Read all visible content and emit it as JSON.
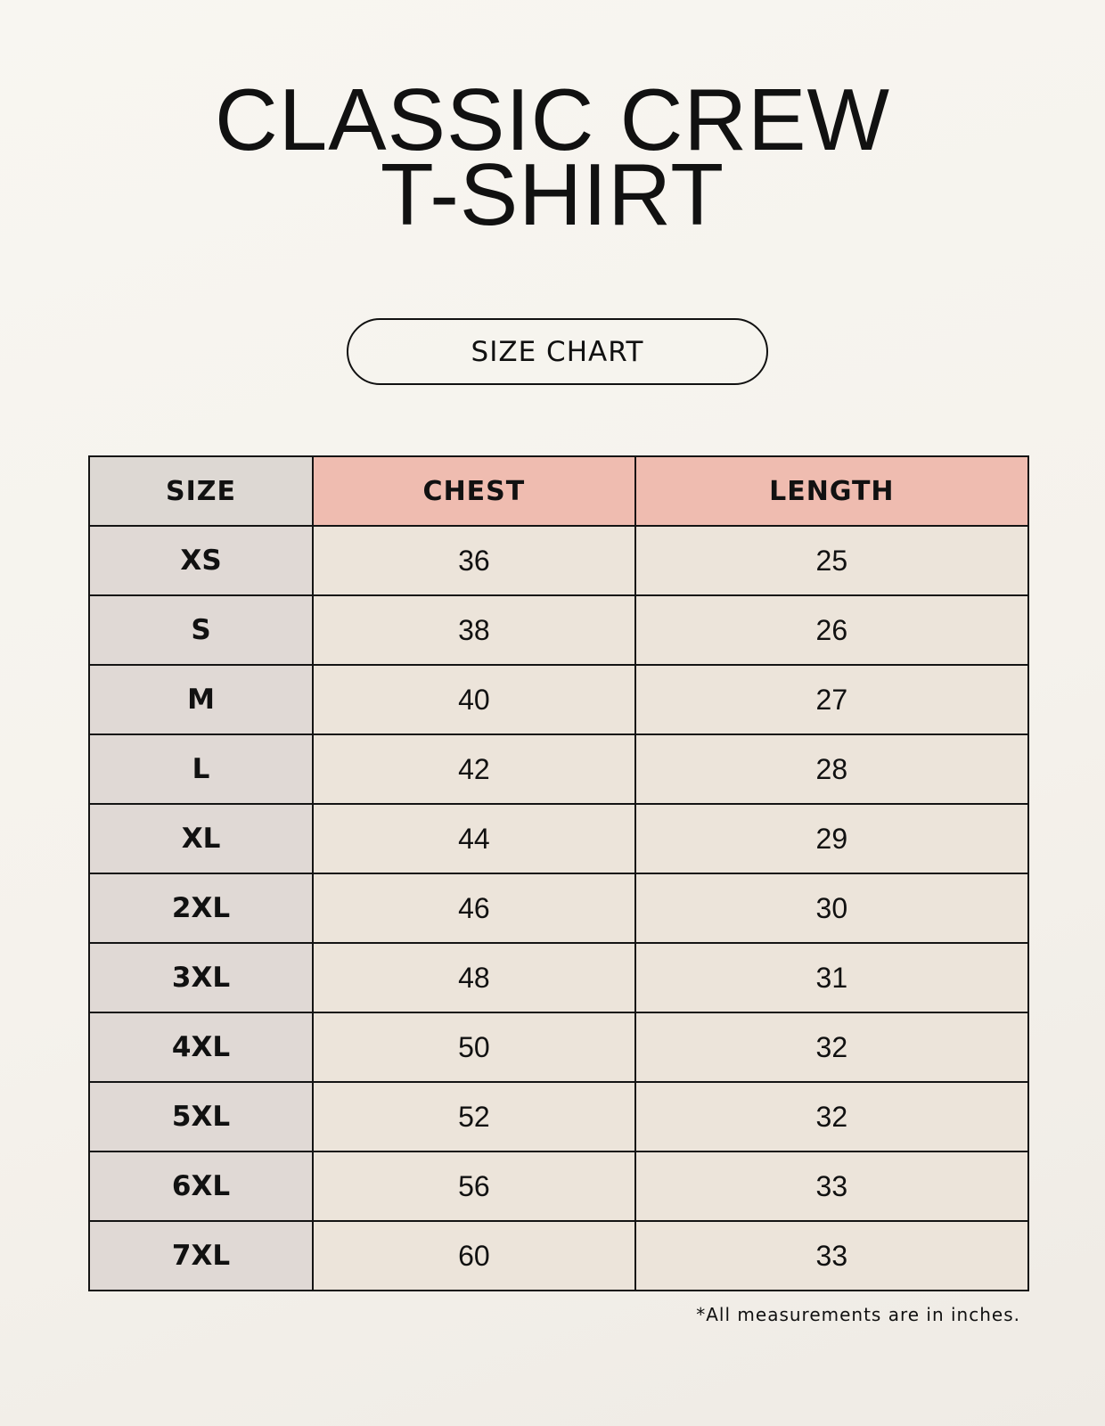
{
  "title": {
    "line1": "CLASSIC CREW",
    "line2": "T-SHIRT"
  },
  "badge": "SIZE CHART",
  "table": {
    "headers": [
      "SIZE",
      "CHEST",
      "LENGTH"
    ],
    "rows": [
      [
        "XS",
        "36",
        "25"
      ],
      [
        "S",
        "38",
        "26"
      ],
      [
        "M",
        "40",
        "27"
      ],
      [
        "L",
        "42",
        "28"
      ],
      [
        "XL",
        "44",
        "29"
      ],
      [
        "2XL",
        "46",
        "30"
      ],
      [
        "3XL",
        "48",
        "31"
      ],
      [
        "4XL",
        "50",
        "32"
      ],
      [
        "5XL",
        "52",
        "32"
      ],
      [
        "6XL",
        "56",
        "33"
      ],
      [
        "7XL",
        "60",
        "33"
      ]
    ]
  },
  "footnote": "*All measurements are in inches.",
  "colors": {
    "header_size": "#ddd8d3",
    "header_measure": "#efbcb0",
    "size_col": "#e0d9d5",
    "value_cells": "#ece4da"
  }
}
